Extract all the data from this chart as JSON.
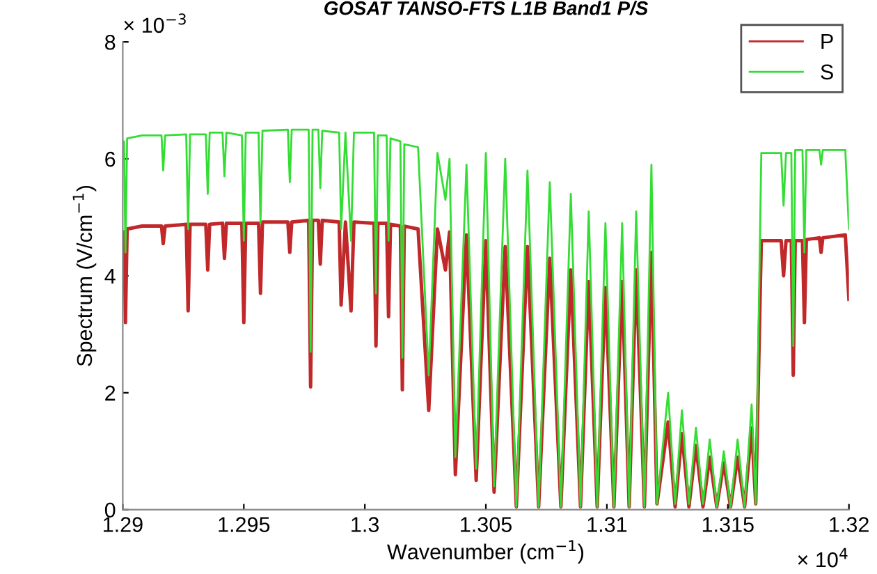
{
  "chart_data": {
    "type": "line",
    "title": "GOSAT TANSO-FTS L1B Band1 P/S",
    "xlabel": "Wavenumber (cm$^{−1}$)",
    "ylabel": "Spectrum (V/cm$^{−1}$)",
    "annotations": [
      "× 10$^{−3}$",
      "× 10$^{4}$"
    ],
    "xlim": [
      1.29,
      1.32
    ],
    "xticks": [
      1.29,
      1.295,
      1.3,
      1.305,
      1.31,
      1.315,
      1.32
    ],
    "ylim": [
      0,
      8
    ],
    "yticks": [
      0,
      2,
      4,
      6,
      8
    ],
    "grid": false,
    "legend": "top right",
    "marker": "none",
    "line_style": "solid",
    "x": [
      1.29,
      1.29005,
      1.29011,
      1.29018,
      1.2908,
      1.2916,
      1.29167,
      1.29175,
      1.29262,
      1.2927,
      1.29278,
      1.29343,
      1.29351,
      1.29359,
      1.29412,
      1.2942,
      1.29428,
      1.29492,
      1.295,
      1.29508,
      1.29561,
      1.29569,
      1.29577,
      1.29682,
      1.2969,
      1.29698,
      1.29768,
      1.29776,
      1.29784,
      1.29808,
      1.29816,
      1.29824,
      1.29894,
      1.29902,
      1.2992,
      1.29943,
      1.29955,
      1.30038,
      1.30046,
      1.30054,
      1.3009,
      1.30098,
      1.30106,
      1.30147,
      1.30155,
      1.30163,
      1.3022,
      1.30264,
      1.303,
      1.30333,
      1.3035,
      1.30374,
      1.3042,
      1.3046,
      1.305,
      1.30534,
      1.3058,
      1.30626,
      1.30672,
      1.30718,
      1.30764,
      1.3081,
      1.30851,
      1.30891,
      1.30925,
      1.3096,
      1.30994,
      1.31029,
      1.31063,
      1.31092,
      1.31121,
      1.31155,
      1.31184,
      1.31207,
      1.31253,
      1.31282,
      1.3131,
      1.31339,
      1.31368,
      1.31397,
      1.31425,
      1.31454,
      1.31483,
      1.31511,
      1.3154,
      1.31569,
      1.31598,
      1.31615,
      1.31638,
      1.3172,
      1.3173,
      1.3174,
      1.31762,
      1.3177,
      1.31778,
      1.31808,
      1.31816,
      1.31824,
      1.31878,
      1.31885,
      1.31892,
      1.31985,
      1.32
    ],
    "series": [
      {
        "name": "P",
        "color": "#c0282a",
        "values": [
          4.7,
          4.75,
          3.2,
          4.8,
          4.85,
          4.85,
          4.55,
          4.85,
          4.88,
          3.4,
          4.88,
          4.88,
          4.1,
          4.88,
          4.9,
          4.3,
          4.9,
          4.9,
          3.2,
          4.9,
          4.9,
          3.7,
          4.92,
          4.92,
          4.4,
          4.92,
          4.95,
          2.1,
          4.95,
          4.95,
          4.2,
          4.95,
          4.92,
          3.5,
          4.92,
          3.4,
          4.92,
          4.9,
          2.8,
          4.9,
          4.9,
          3.3,
          4.88,
          4.85,
          2.05,
          4.85,
          4.8,
          1.7,
          4.8,
          4.1,
          4.75,
          0.6,
          4.7,
          0.5,
          4.6,
          0.3,
          4.5,
          0.05,
          4.5,
          0.05,
          4.3,
          0.05,
          4.1,
          0.05,
          3.9,
          0.05,
          3.8,
          0.05,
          3.9,
          0.05,
          4.1,
          0.05,
          4.4,
          0.1,
          1.5,
          0.05,
          1.3,
          0.05,
          1.1,
          0.05,
          0.9,
          0.05,
          0.8,
          0.05,
          0.9,
          0.05,
          1.4,
          0.1,
          4.6,
          4.6,
          4.0,
          4.6,
          4.6,
          2.3,
          4.6,
          4.6,
          3.2,
          4.62,
          4.65,
          4.4,
          4.65,
          4.7,
          3.6
        ]
      },
      {
        "name": "S",
        "color": "#33dd33",
        "values": [
          6.2,
          6.3,
          4.4,
          6.35,
          6.4,
          6.4,
          5.8,
          6.4,
          6.42,
          4.8,
          6.42,
          6.42,
          5.4,
          6.45,
          6.45,
          5.7,
          6.45,
          6.4,
          4.6,
          6.45,
          6.45,
          4.9,
          6.48,
          6.5,
          5.6,
          6.5,
          6.5,
          2.7,
          6.5,
          6.5,
          5.5,
          6.48,
          6.45,
          4.8,
          6.45,
          4.6,
          6.45,
          6.45,
          3.7,
          6.4,
          6.4,
          4.6,
          6.35,
          6.3,
          2.6,
          6.25,
          6.2,
          2.3,
          6.1,
          5.3,
          6.0,
          0.9,
          5.9,
          0.7,
          6.1,
          0.4,
          6.0,
          0.05,
          5.8,
          0.05,
          5.6,
          0.05,
          5.4,
          0.05,
          5.1,
          0.05,
          4.9,
          0.05,
          4.9,
          0.05,
          5.1,
          0.05,
          5.9,
          0.1,
          2.0,
          0.1,
          1.7,
          0.1,
          1.4,
          0.1,
          1.2,
          0.05,
          1.0,
          0.05,
          1.2,
          0.05,
          1.8,
          0.1,
          6.1,
          6.1,
          5.2,
          6.1,
          6.1,
          2.8,
          6.15,
          6.15,
          4.4,
          6.15,
          6.15,
          5.9,
          6.15,
          6.15,
          4.8
        ]
      }
    ]
  }
}
